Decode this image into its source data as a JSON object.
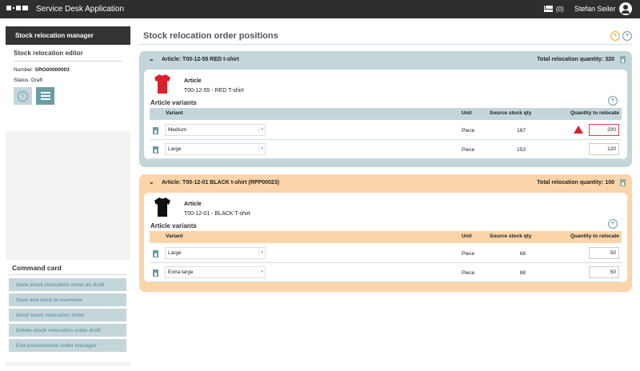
{
  "app": {
    "title": "Service Desk Application",
    "mail_count": "(0)",
    "user": "Stefan Seiler"
  },
  "sidebar": {
    "title": "Stock relocation manager",
    "editor_title": "Stock relocation editor",
    "number_label": "Number:",
    "number": "SRO00000003",
    "status_label": "Status:",
    "status": "Draft",
    "command_title": "Command card",
    "commands": [
      "Save stock relocation order as draft",
      "Save and back to overview",
      "Send stock relocation order",
      "Delete stock relocation order draft",
      "Exit procurement order manager"
    ]
  },
  "main": {
    "title": "Stock relocation order positions",
    "colors": {
      "blue": "#c4d6da",
      "orange": "#fbd5a9",
      "accent": "#6a9ea5"
    },
    "cards": [
      {
        "header": "Article:  T00-12-55 RED t-shirt",
        "total": "Total relocation quantity: 320",
        "article_label": "Article",
        "article": "T00-12-55 - RED T-shirt",
        "variants_title": "Article variants",
        "columns": [
          "Variant",
          "Unit",
          "Source stock qty",
          "Quantity to relocate"
        ],
        "rows": [
          {
            "variant": "Medium",
            "unit": "Piece",
            "source": "187",
            "qty": "200",
            "warning": true
          },
          {
            "variant": "Large",
            "unit": "Piece",
            "source": "153",
            "qty": "120",
            "warning": false
          }
        ]
      },
      {
        "header": "Article:  T00-12-01 BLACK t-shirt (RPP00023)",
        "total": "Total relocation quantity: 100",
        "article_label": "Article",
        "article": "T00-12-01 - BLACK T-shirt",
        "variants_title": "Article variants",
        "columns": [
          "Variant",
          "Unit",
          "Source stock qty",
          "Quantity to relocate"
        ],
        "rows": [
          {
            "variant": "Large",
            "unit": "Piece",
            "source": "68",
            "qty": "50",
            "warning": false
          },
          {
            "variant": "Extra large",
            "unit": "Piece",
            "source": "88",
            "qty": "50",
            "warning": false
          }
        ]
      }
    ]
  }
}
